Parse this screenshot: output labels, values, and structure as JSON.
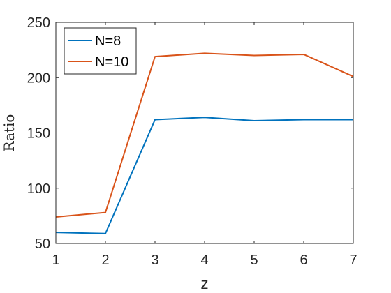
{
  "chart_data": {
    "type": "line",
    "title": "",
    "xlabel": "z",
    "ylabel": "Ratio",
    "x": [
      1,
      2,
      3,
      4,
      5,
      6,
      7
    ],
    "xlim": [
      1,
      7
    ],
    "ylim": [
      50,
      250
    ],
    "xticks": [
      "1",
      "2",
      "3",
      "4",
      "5",
      "6",
      "7"
    ],
    "yticks": [
      "50",
      "100",
      "150",
      "200",
      "250"
    ],
    "grid": false,
    "legend_position": "top-left",
    "series": [
      {
        "name": "N=8",
        "color": "#0072BD",
        "values": [
          60,
          59,
          162,
          164,
          161,
          162,
          162
        ]
      },
      {
        "name": "N=10",
        "color": "#D95319",
        "values": [
          74,
          78,
          219,
          222,
          220,
          221,
          201
        ]
      }
    ]
  }
}
